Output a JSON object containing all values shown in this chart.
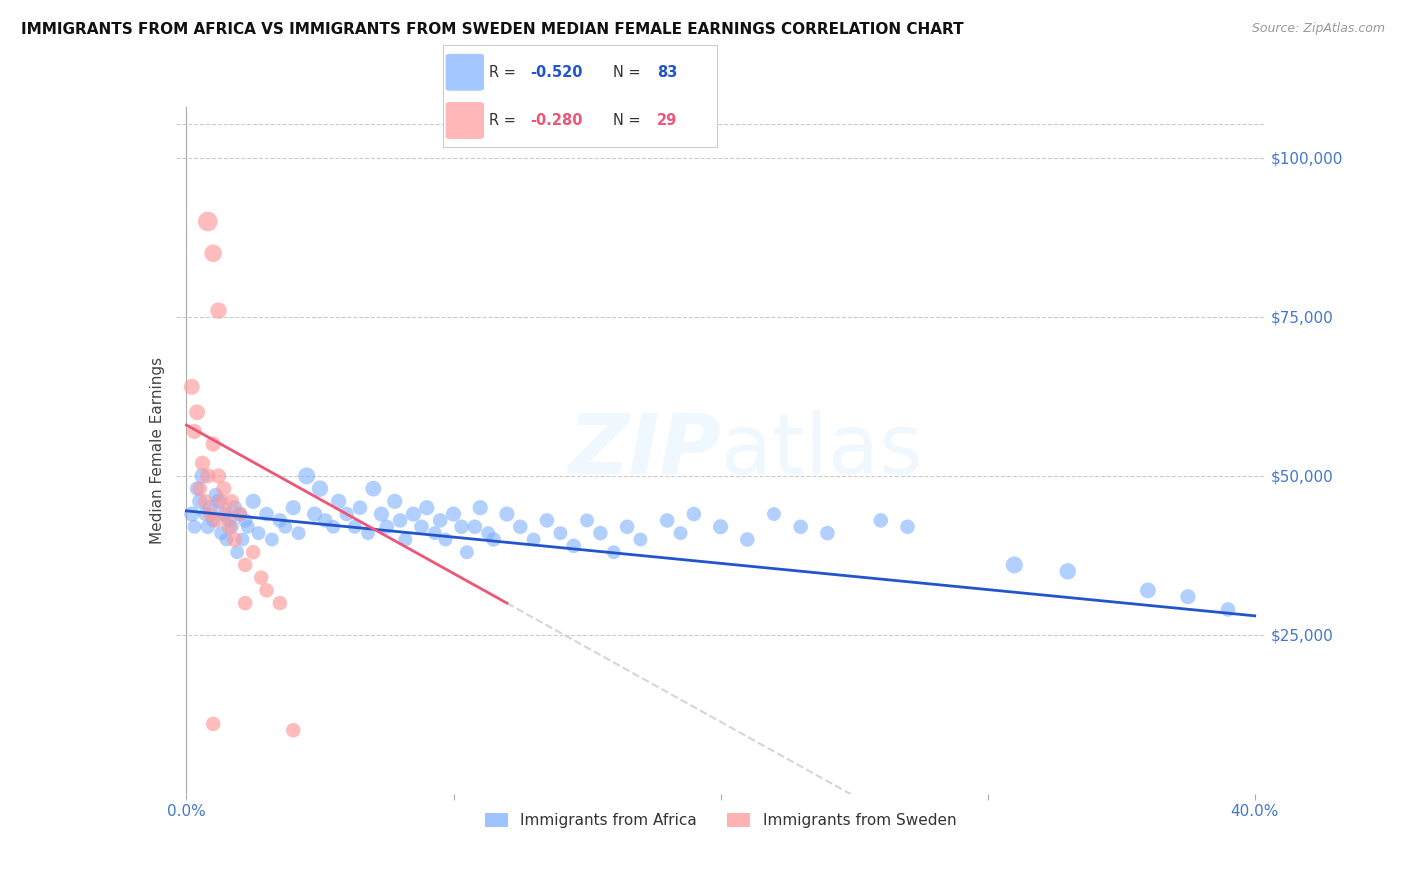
{
  "title": "IMMIGRANTS FROM AFRICA VS IMMIGRANTS FROM SWEDEN MEDIAN FEMALE EARNINGS CORRELATION CHART",
  "source": "Source: ZipAtlas.com",
  "ylabel": "Median Female Earnings",
  "right_yticklabels": [
    "$25,000",
    "$50,000",
    "$75,000",
    "$100,000"
  ],
  "right_ytick_vals": [
    25000,
    50000,
    75000,
    100000
  ],
  "xlim": [
    -0.004,
    0.404
  ],
  "ylim": [
    0,
    108000
  ],
  "watermark": "ZIPatlas",
  "africa_color": "#7EB0FF",
  "sweden_color": "#FF9999",
  "africa_line_color": "#2255CC",
  "sweden_line_color": "#EE5577",
  "dashed_line_color": "#CCCCCC",
  "background_color": "#FFFFFF",
  "title_fontsize": 11,
  "axis_label_color": "#4477CC",
  "grid_color": "#CCCCCC",
  "africa_points": [
    [
      0.002,
      44000
    ],
    [
      0.003,
      42000
    ],
    [
      0.004,
      48000
    ],
    [
      0.005,
      46000
    ],
    [
      0.006,
      50000
    ],
    [
      0.007,
      44000
    ],
    [
      0.008,
      42000
    ],
    [
      0.009,
      45000
    ],
    [
      0.01,
      43000
    ],
    [
      0.011,
      47000
    ],
    [
      0.012,
      46000
    ],
    [
      0.013,
      41000
    ],
    [
      0.014,
      44000
    ],
    [
      0.015,
      40000
    ],
    [
      0.016,
      43000
    ],
    [
      0.017,
      42000
    ],
    [
      0.018,
      45000
    ],
    [
      0.019,
      38000
    ],
    [
      0.02,
      44000
    ],
    [
      0.021,
      40000
    ],
    [
      0.022,
      43000
    ],
    [
      0.023,
      42000
    ],
    [
      0.025,
      46000
    ],
    [
      0.027,
      41000
    ],
    [
      0.03,
      44000
    ],
    [
      0.032,
      40000
    ],
    [
      0.035,
      43000
    ],
    [
      0.037,
      42000
    ],
    [
      0.04,
      45000
    ],
    [
      0.042,
      41000
    ],
    [
      0.045,
      50000
    ],
    [
      0.048,
      44000
    ],
    [
      0.05,
      48000
    ],
    [
      0.052,
      43000
    ],
    [
      0.055,
      42000
    ],
    [
      0.057,
      46000
    ],
    [
      0.06,
      44000
    ],
    [
      0.063,
      42000
    ],
    [
      0.065,
      45000
    ],
    [
      0.068,
      41000
    ],
    [
      0.07,
      48000
    ],
    [
      0.073,
      44000
    ],
    [
      0.075,
      42000
    ],
    [
      0.078,
      46000
    ],
    [
      0.08,
      43000
    ],
    [
      0.082,
      40000
    ],
    [
      0.085,
      44000
    ],
    [
      0.088,
      42000
    ],
    [
      0.09,
      45000
    ],
    [
      0.093,
      41000
    ],
    [
      0.095,
      43000
    ],
    [
      0.097,
      40000
    ],
    [
      0.1,
      44000
    ],
    [
      0.103,
      42000
    ],
    [
      0.105,
      38000
    ],
    [
      0.108,
      42000
    ],
    [
      0.11,
      45000
    ],
    [
      0.113,
      41000
    ],
    [
      0.115,
      40000
    ],
    [
      0.12,
      44000
    ],
    [
      0.125,
      42000
    ],
    [
      0.13,
      40000
    ],
    [
      0.135,
      43000
    ],
    [
      0.14,
      41000
    ],
    [
      0.145,
      39000
    ],
    [
      0.15,
      43000
    ],
    [
      0.155,
      41000
    ],
    [
      0.16,
      38000
    ],
    [
      0.165,
      42000
    ],
    [
      0.17,
      40000
    ],
    [
      0.18,
      43000
    ],
    [
      0.185,
      41000
    ],
    [
      0.19,
      44000
    ],
    [
      0.2,
      42000
    ],
    [
      0.21,
      40000
    ],
    [
      0.22,
      44000
    ],
    [
      0.23,
      42000
    ],
    [
      0.24,
      41000
    ],
    [
      0.26,
      43000
    ],
    [
      0.27,
      42000
    ],
    [
      0.31,
      36000
    ],
    [
      0.33,
      35000
    ],
    [
      0.36,
      32000
    ],
    [
      0.375,
      31000
    ],
    [
      0.39,
      29000
    ]
  ],
  "sweden_points": [
    [
      0.002,
      64000
    ],
    [
      0.003,
      57000
    ],
    [
      0.004,
      60000
    ],
    [
      0.005,
      48000
    ],
    [
      0.006,
      52000
    ],
    [
      0.007,
      46000
    ],
    [
      0.008,
      50000
    ],
    [
      0.009,
      44000
    ],
    [
      0.01,
      55000
    ],
    [
      0.011,
      43000
    ],
    [
      0.012,
      50000
    ],
    [
      0.013,
      46000
    ],
    [
      0.014,
      48000
    ],
    [
      0.015,
      44000
    ],
    [
      0.016,
      42000
    ],
    [
      0.017,
      46000
    ],
    [
      0.018,
      40000
    ],
    [
      0.02,
      44000
    ],
    [
      0.022,
      36000
    ],
    [
      0.025,
      38000
    ],
    [
      0.028,
      34000
    ],
    [
      0.03,
      32000
    ],
    [
      0.035,
      30000
    ],
    [
      0.008,
      90000
    ],
    [
      0.01,
      85000
    ],
    [
      0.012,
      76000
    ],
    [
      0.01,
      11000
    ],
    [
      0.022,
      30000
    ],
    [
      0.04,
      10000
    ]
  ],
  "africa_sizes": [
    120,
    100,
    110,
    120,
    130,
    100,
    110,
    120,
    100,
    110,
    120,
    100,
    110,
    100,
    110,
    100,
    120,
    100,
    110,
    100,
    110,
    100,
    120,
    100,
    110,
    100,
    110,
    100,
    120,
    100,
    150,
    120,
    140,
    110,
    100,
    120,
    110,
    100,
    110,
    100,
    130,
    120,
    110,
    120,
    110,
    100,
    120,
    110,
    120,
    100,
    110,
    100,
    120,
    110,
    100,
    110,
    120,
    100,
    110,
    120,
    110,
    100,
    110,
    100,
    110,
    100,
    110,
    100,
    110,
    100,
    110,
    100,
    110,
    120,
    110,
    100,
    110,
    110,
    110,
    110,
    150,
    140,
    130,
    120,
    110
  ],
  "sweden_sizes": [
    130,
    120,
    130,
    110,
    120,
    110,
    120,
    110,
    120,
    110,
    120,
    110,
    120,
    110,
    120,
    110,
    120,
    110,
    110,
    110,
    110,
    110,
    110,
    200,
    160,
    140,
    110,
    110,
    110
  ]
}
